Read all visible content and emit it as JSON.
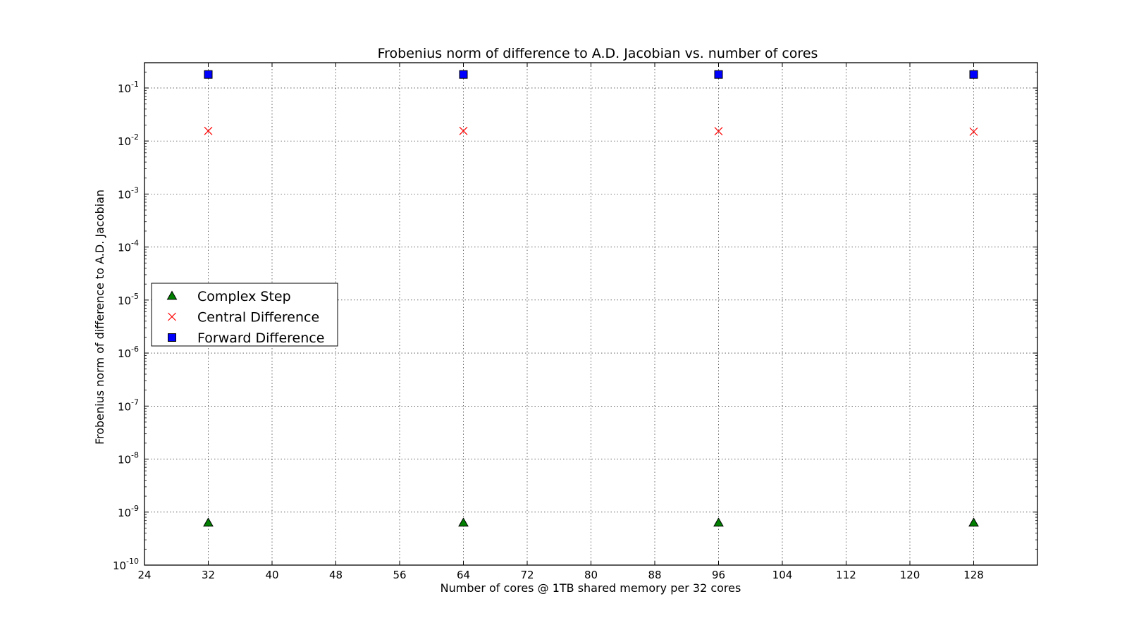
{
  "chart_data": {
    "type": "scatter",
    "title": "Frobenius norm of difference to A.D. Jacobian vs. number of cores",
    "xlabel": "Number of cores @ 1TB shared memory per 32 cores",
    "ylabel": "Frobenius norm of difference to A.D. Jacobian",
    "xlim": [
      24,
      136
    ],
    "ylim": [
      1e-10,
      0.3
    ],
    "yscale": "log",
    "grid": true,
    "legend_position": "center-left",
    "x_ticks": [
      "24",
      "32",
      "40",
      "48",
      "56",
      "64",
      "72",
      "80",
      "88",
      "96",
      "104",
      "112",
      "120",
      "128"
    ],
    "y_tick_base": "10",
    "y_tick_exponents": [
      "-10",
      "-9",
      "-8",
      "-7",
      "-6",
      "-5",
      "-4",
      "-3",
      "-2",
      "-1"
    ],
    "x": [
      32,
      64,
      96,
      128
    ],
    "series": [
      {
        "name": "Complex Step",
        "marker": "triangle",
        "color": "#007f00",
        "values": [
          6.3e-10,
          6.3e-10,
          6.3e-10,
          6.3e-10
        ]
      },
      {
        "name": "Central Difference",
        "marker": "x",
        "color": "#ff0000",
        "values": [
          0.0155,
          0.0155,
          0.0153,
          0.015
        ]
      },
      {
        "name": "Forward Difference",
        "marker": "square",
        "color": "#0000ff",
        "values": [
          0.18,
          0.18,
          0.18,
          0.18
        ]
      }
    ]
  }
}
